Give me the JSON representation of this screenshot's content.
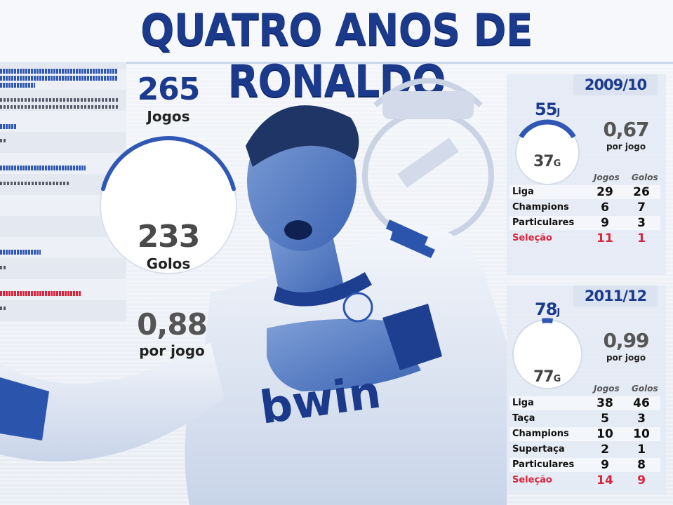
{
  "title": "QUATRO ANOS DE RONALDO",
  "overall": {
    "jogos_value": "265",
    "jogos_label": "Jogos",
    "golos_value": "233",
    "golos_label": "Golos",
    "rate_value": "0,88",
    "rate_label": "por jogo"
  },
  "seasons": [
    {
      "name": "2009/10",
      "jogos": "55",
      "jogos_suffix": "J",
      "golos": "37",
      "golos_suffix": "G",
      "rate_value": "0,67",
      "rate_label": "por jogo",
      "col_jogos": "Jogos",
      "col_golos": "Golos",
      "rows": [
        {
          "label": "Liga",
          "jogos": "29",
          "golos": "26"
        },
        {
          "label": "Champions",
          "jogos": "6",
          "golos": "7"
        },
        {
          "label": "Particulares",
          "jogos": "9",
          "golos": "3"
        },
        {
          "label": "Seleção",
          "jogos": "11",
          "golos": "1"
        }
      ]
    },
    {
      "name": "2011/12",
      "jogos": "78",
      "jogos_suffix": "J",
      "golos": "77",
      "golos_suffix": "G",
      "rate_value": "0,99",
      "rate_label": "por jogo",
      "col_jogos": "Jogos",
      "col_golos": "Golos",
      "rows": [
        {
          "label": "Liga",
          "jogos": "38",
          "golos": "46"
        },
        {
          "label": "Taça",
          "jogos": "5",
          "golos": "3"
        },
        {
          "label": "Champions",
          "jogos": "10",
          "golos": "10"
        },
        {
          "label": "Supertaça",
          "jogos": "2",
          "golos": "1"
        },
        {
          "label": "Particulares",
          "jogos": "9",
          "golos": "8"
        },
        {
          "label": "Seleção",
          "jogos": "14",
          "golos": "9"
        }
      ]
    }
  ],
  "colors": {
    "blue": "#1b3a8c",
    "accent_blue": "#2f57b3",
    "red": "#d7263d",
    "grey": "#555b66"
  },
  "sponsor_text": "bwin"
}
